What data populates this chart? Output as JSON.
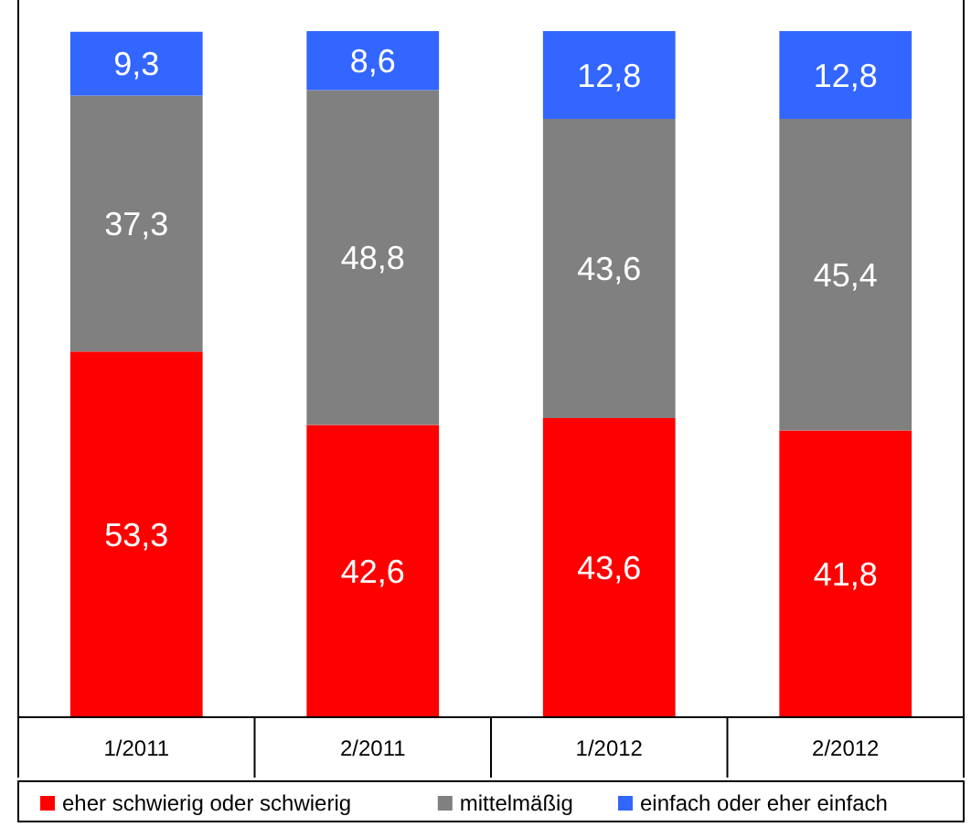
{
  "chart_data": {
    "type": "bar",
    "stacked": true,
    "legend": "bottom",
    "categories": [
      "1/2011",
      "2/2011",
      "1/2012",
      "2/2012"
    ],
    "series": [
      {
        "name": "eher schwierig oder schwierig",
        "color": "#ff0000",
        "values": [
          53.3,
          42.6,
          43.6,
          41.8
        ],
        "value_labels": [
          "53,3",
          "42,6",
          "43,6",
          "41,8"
        ]
      },
      {
        "name": "mittelmäßig",
        "color": "#808080",
        "values": [
          37.3,
          48.8,
          43.6,
          45.4
        ],
        "value_labels": [
          "37,3",
          "48,8",
          "43,6",
          "45,4"
        ]
      },
      {
        "name": "einfach oder eher einfach",
        "color": "#3366ff",
        "values": [
          9.3,
          8.6,
          12.8,
          12.8
        ],
        "value_labels": [
          "9,3",
          "8,6",
          "12,8",
          "12,8"
        ]
      }
    ]
  }
}
